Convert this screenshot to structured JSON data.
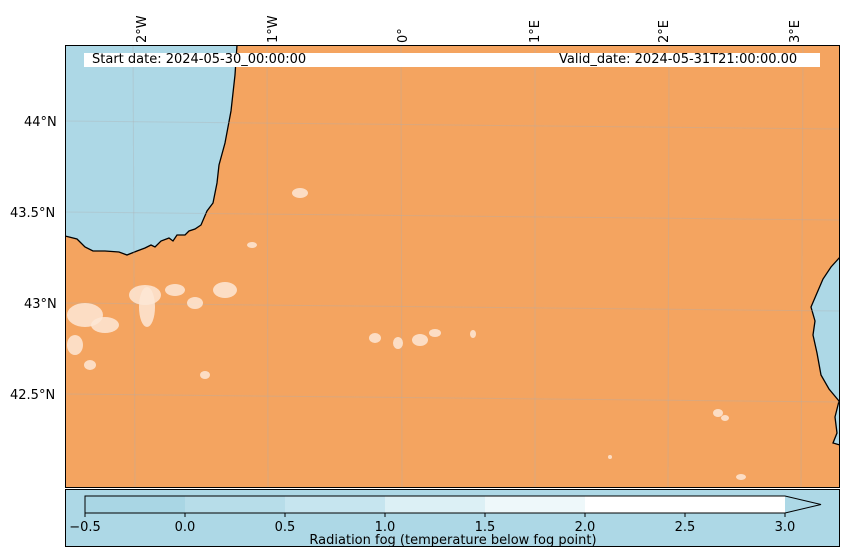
{
  "header": {
    "start_date": "Start date: 2024-05-30_00:00:00",
    "valid_date": "Valid_date: 2024-05-31T21:00:00.00"
  },
  "axes": {
    "lon_labels": [
      "2°W",
      "1°W",
      "0°",
      "1°E",
      "2°E",
      "3°E"
    ],
    "lat_labels": [
      "44°N",
      "43.5°N",
      "43°N",
      "42.5°N"
    ]
  },
  "map": {
    "extent": {
      "lon": [
        -2.5,
        3.3
      ],
      "lat": [
        42.0,
        44.4
      ]
    },
    "sea_color": "#add8e6",
    "land_color": "#f4a460",
    "coastline_color": "#000000",
    "grid": true
  },
  "colorbar": {
    "label": "Radiation fog (temperature below fog point)",
    "ticks": [
      "−0.5",
      "0.0",
      "0.5",
      "1.0",
      "1.5",
      "2.0",
      "2.5",
      "3.0"
    ],
    "range": [
      -0.5,
      3.0
    ],
    "extend": "max",
    "colors": [
      "#add8e6",
      "#c3e3ee",
      "#d6ebf3",
      "#e8f4f8",
      "#f4fafc",
      "#ffffff"
    ]
  }
}
